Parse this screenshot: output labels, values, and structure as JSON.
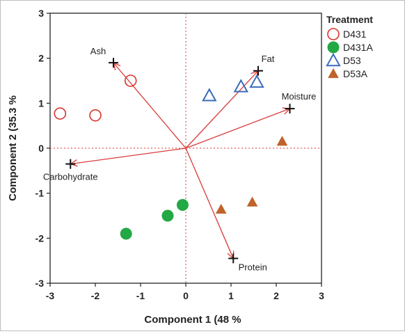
{
  "chart_data": {
    "type": "scatter",
    "title": "",
    "xlabel": "Component 1  (48 %",
    "ylabel": "Component 2  (35.3 %",
    "xlim": [
      -3,
      3
    ],
    "ylim": [
      -3,
      3
    ],
    "xticks": [
      -3,
      -2,
      -1,
      0,
      1,
      2,
      3
    ],
    "yticks": [
      3,
      2,
      1,
      0,
      -1,
      -2,
      -3
    ],
    "grid": false,
    "legend_title": "Treatment",
    "legend_position": "right",
    "series": [
      {
        "name": "D431",
        "marker": "open-circle",
        "color": "#d9322b",
        "points": [
          [
            -2.78,
            0.77
          ],
          [
            -2.0,
            0.73
          ],
          [
            -1.22,
            1.5
          ]
        ]
      },
      {
        "name": "D431A",
        "marker": "filled-circle",
        "color": "#22a845",
        "points": [
          [
            -1.32,
            -1.9
          ],
          [
            -0.4,
            -1.5
          ],
          [
            -0.07,
            -1.26
          ]
        ]
      },
      {
        "name": "D53",
        "marker": "open-triangle",
        "color": "#3a6bbd",
        "points": [
          [
            0.52,
            1.17
          ],
          [
            1.22,
            1.37
          ],
          [
            1.57,
            1.47
          ]
        ]
      },
      {
        "name": "D53A",
        "marker": "filled-triangle",
        "color": "#c0632a",
        "points": [
          [
            0.78,
            -1.36
          ],
          [
            1.47,
            -1.2
          ],
          [
            2.13,
            0.15
          ]
        ]
      }
    ],
    "loadings": [
      {
        "label": "Ash",
        "x": -1.6,
        "y": 1.9
      },
      {
        "label": "Fat",
        "x": 1.6,
        "y": 1.72
      },
      {
        "label": "Moisture",
        "x": 2.3,
        "y": 0.88
      },
      {
        "label": "Carbohydrate",
        "x": -2.55,
        "y": -0.35
      },
      {
        "label": "Protein",
        "x": 1.05,
        "y": -2.45
      }
    ],
    "colors": {
      "arrow": "#d93a3a",
      "reference_line": "#e05a5a",
      "axis": "#222222"
    }
  }
}
